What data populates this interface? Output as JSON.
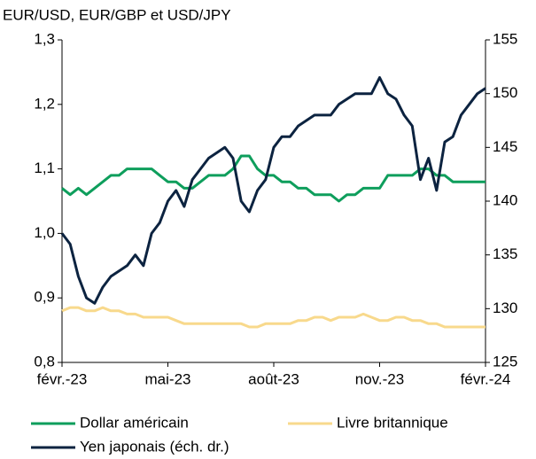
{
  "chart_data": {
    "type": "line",
    "title": "EUR/USD, EUR/GBP et USD/JPY",
    "categories": [
      "févr.-23",
      null,
      null,
      null,
      null,
      null,
      null,
      null,
      null,
      null,
      null,
      null,
      null,
      "mai-23",
      null,
      null,
      null,
      null,
      null,
      null,
      null,
      null,
      null,
      null,
      null,
      null,
      "août-23",
      null,
      null,
      null,
      null,
      null,
      null,
      null,
      null,
      null,
      null,
      null,
      null,
      "nov.-23",
      null,
      null,
      null,
      null,
      null,
      null,
      null,
      null,
      null,
      null,
      null,
      null,
      "févr.-24"
    ],
    "ylim": [
      0.8,
      1.3
    ],
    "yticks": [
      {
        "value": 0.8,
        "label": "0,8"
      },
      {
        "value": 0.9,
        "label": "0,9"
      },
      {
        "value": 1.0,
        "label": "1,0"
      },
      {
        "value": 1.1,
        "label": "1,1"
      },
      {
        "value": 1.2,
        "label": "1,2"
      },
      {
        "value": 1.3,
        "label": "1,3"
      }
    ],
    "y2lim": [
      125,
      155
    ],
    "y2ticks": [
      125,
      130,
      135,
      140,
      145,
      150,
      155
    ],
    "series": [
      {
        "name": "Dollar américain",
        "color": "#0e9e5c",
        "values": [
          1.07,
          1.06,
          1.07,
          1.06,
          1.07,
          1.08,
          1.09,
          1.09,
          1.1,
          1.1,
          1.1,
          1.1,
          1.09,
          1.08,
          1.08,
          1.07,
          1.07,
          1.08,
          1.09,
          1.09,
          1.09,
          1.1,
          1.12,
          1.12,
          1.1,
          1.09,
          1.09,
          1.08,
          1.08,
          1.07,
          1.07,
          1.06,
          1.06,
          1.06,
          1.05,
          1.06,
          1.06,
          1.07,
          1.07,
          1.07,
          1.09,
          1.09,
          1.09,
          1.09,
          1.1,
          1.1,
          1.09,
          1.09,
          1.08,
          1.08,
          1.08,
          1.08,
          1.08
        ]
      },
      {
        "name": "Livre britannique",
        "color": "#f8d98c",
        "values": [
          0.88,
          0.885,
          0.885,
          0.88,
          0.88,
          0.885,
          0.88,
          0.88,
          0.875,
          0.875,
          0.87,
          0.87,
          0.87,
          0.87,
          0.865,
          0.86,
          0.86,
          0.86,
          0.86,
          0.86,
          0.86,
          0.86,
          0.86,
          0.855,
          0.855,
          0.86,
          0.86,
          0.86,
          0.86,
          0.865,
          0.865,
          0.87,
          0.87,
          0.865,
          0.87,
          0.87,
          0.87,
          0.875,
          0.87,
          0.865,
          0.865,
          0.87,
          0.87,
          0.865,
          0.865,
          0.86,
          0.86,
          0.855,
          0.855,
          0.855,
          0.855,
          0.855,
          0.855
        ]
      },
      {
        "name": "Yen japonais (éch. dr.)",
        "color": "#0c2340",
        "axis": "y2",
        "values": [
          137,
          136,
          133,
          131,
          130.5,
          132,
          133,
          133.5,
          134,
          135,
          134,
          137,
          138,
          140,
          141,
          139.5,
          142,
          143,
          144,
          144.5,
          145,
          144,
          140,
          139,
          141,
          142,
          145,
          146,
          146,
          147,
          147.5,
          148,
          148,
          148,
          149,
          149.5,
          150,
          150,
          150,
          151.5,
          150,
          149.5,
          148,
          147,
          142,
          144,
          141,
          145.5,
          146,
          148,
          149,
          150,
          150.5
        ]
      }
    ]
  }
}
